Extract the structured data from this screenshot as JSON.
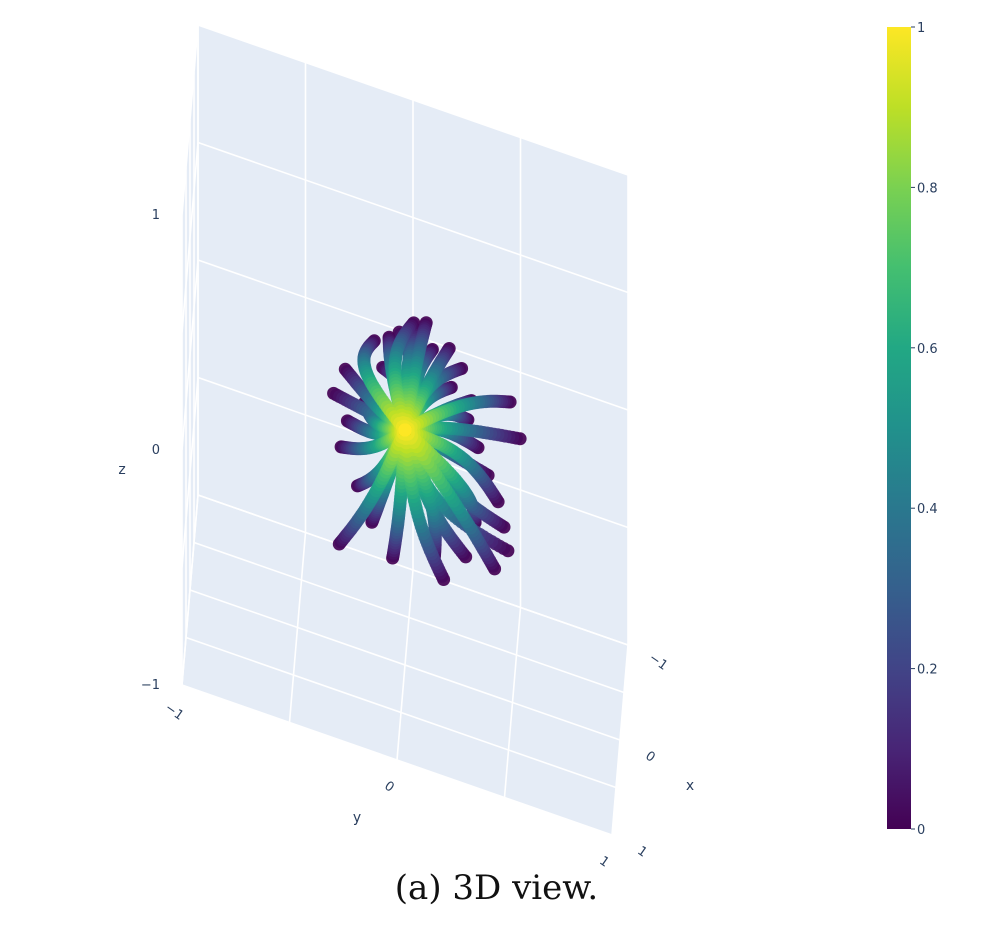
{
  "chart_data": {
    "type": "scatter",
    "projection": "3d",
    "caption": "(a) 3D view.",
    "axes": {
      "x": {
        "label": "x",
        "range": [
          -1,
          1
        ],
        "ticks": [
          "−1",
          "0",
          "1"
        ]
      },
      "y": {
        "label": "y",
        "range": [
          -1,
          1
        ],
        "ticks": [
          "−1",
          "0",
          "1"
        ]
      },
      "z": {
        "label": "z",
        "range": [
          -1,
          1
        ],
        "ticks": [
          "−1",
          "0",
          "1"
        ]
      }
    },
    "background": "#e5ecf6",
    "grid": true,
    "colorbar": {
      "colorscale": "Viridis",
      "range": [
        0,
        1
      ],
      "ticks": [
        "0",
        "0.2",
        "0.4",
        "0.6",
        "0.8",
        "1"
      ],
      "placement": "right"
    },
    "series": [
      {
        "marker_color_by": "value",
        "description_points": "curved trajectories radiating from origin (value 1, yellow) to endpoints (value 0, purple)",
        "endpoints": [
          [
            -0.73,
            -0.17,
            0.03
          ],
          [
            -0.7,
            -0.1,
            0.08
          ],
          [
            -0.62,
            -0.05,
            0.15
          ],
          [
            -0.55,
            0.02,
            0.24
          ],
          [
            -0.5,
            0.08,
            0.28
          ],
          [
            -0.44,
            -0.12,
            0.05
          ],
          [
            -0.38,
            -0.2,
            -0.1
          ],
          [
            -0.32,
            -0.28,
            -0.18
          ],
          [
            -0.26,
            -0.05,
            -0.25
          ],
          [
            -0.2,
            0.12,
            0.3
          ],
          [
            -0.15,
            0.2,
            0.35
          ],
          [
            -0.1,
            0.05,
            0.4
          ],
          [
            0.05,
            0.1,
            0.38
          ],
          [
            0.12,
            0.22,
            0.3
          ],
          [
            0.2,
            0.3,
            0.22
          ],
          [
            0.28,
            0.35,
            0.15
          ],
          [
            0.36,
            0.4,
            0.08
          ],
          [
            0.45,
            0.45,
            0.02
          ],
          [
            0.52,
            0.48,
            -0.05
          ],
          [
            0.58,
            0.5,
            -0.12
          ],
          [
            0.62,
            0.44,
            -0.2
          ],
          [
            0.48,
            0.3,
            -0.25
          ],
          [
            0.35,
            0.15,
            -0.35
          ],
          [
            0.2,
            -0.05,
            -0.48
          ],
          [
            0.1,
            -0.15,
            -0.4
          ],
          [
            0.02,
            -0.22,
            -0.3
          ],
          [
            -0.08,
            -0.3,
            -0.2
          ],
          [
            0.4,
            0.55,
            0.3
          ],
          [
            0.3,
            0.5,
            0.4
          ],
          [
            -0.6,
            -0.3,
            -0.08
          ],
          [
            -0.48,
            -0.35,
            -0.15
          ],
          [
            -0.35,
            0.25,
            0.2
          ],
          [
            0.55,
            0.2,
            -0.35
          ],
          [
            0.65,
            0.35,
            -0.02
          ],
          [
            0.15,
            -0.3,
            -0.52
          ],
          [
            -0.25,
            0.3,
            0.12
          ]
        ]
      }
    ]
  }
}
